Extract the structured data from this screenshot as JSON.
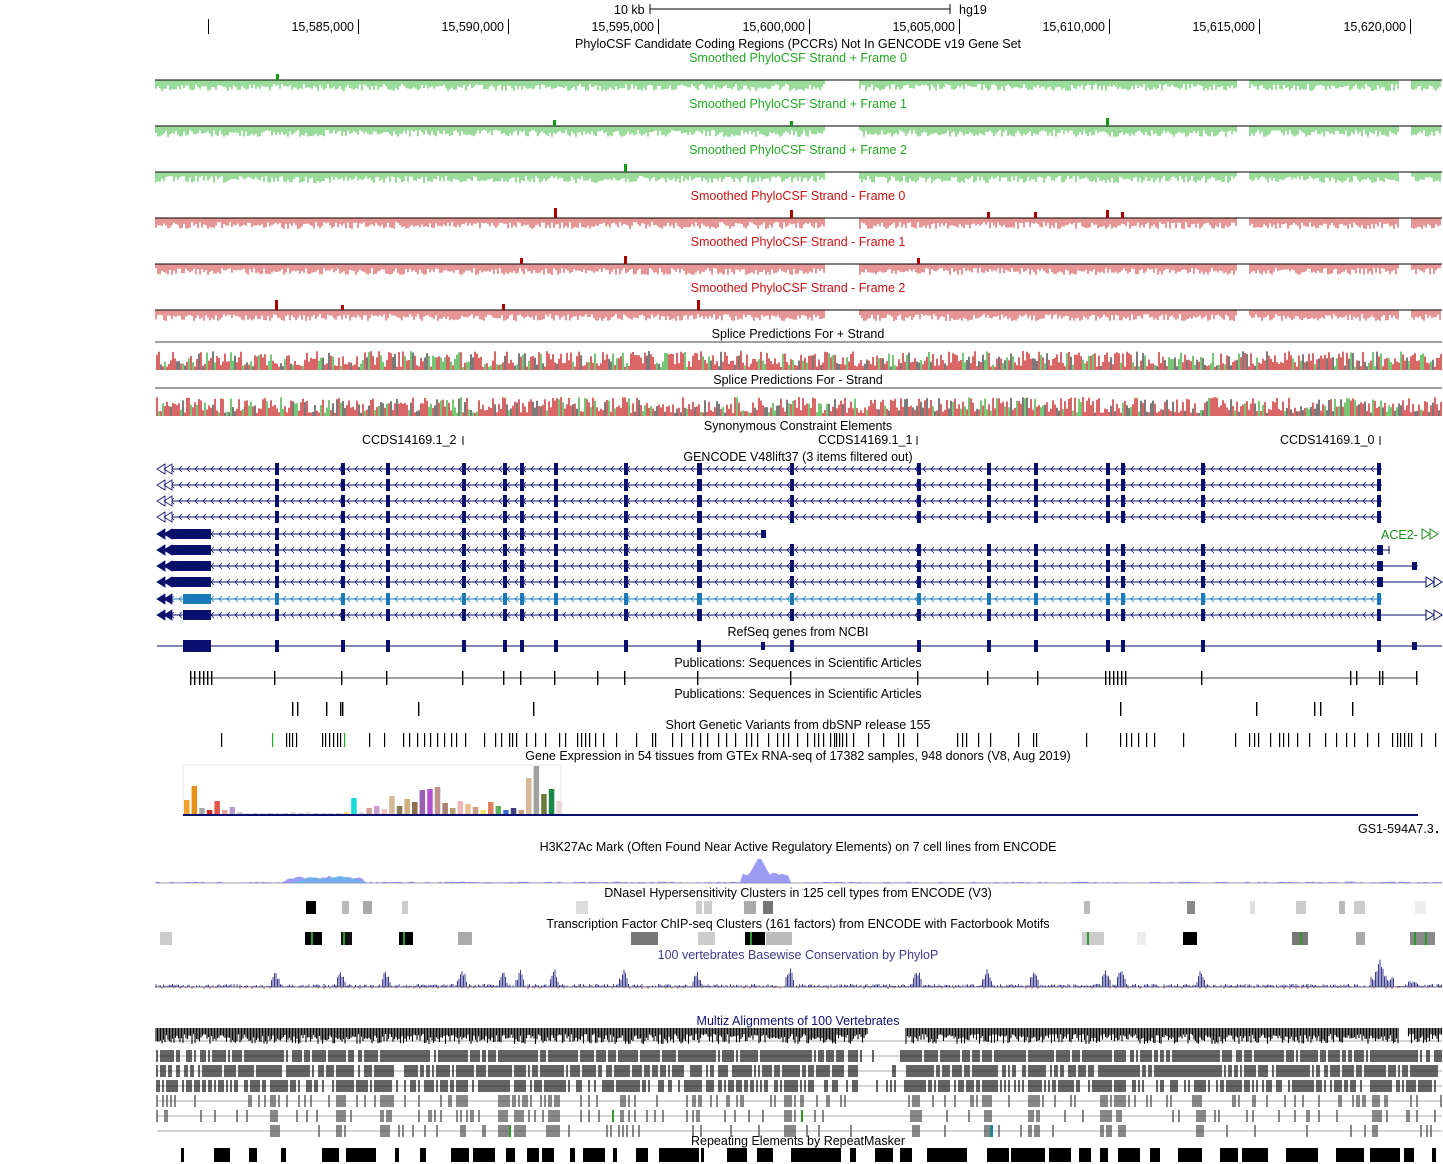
{
  "ruler": {
    "scale_label": "10 kb",
    "assembly": "hg19",
    "positions": [
      "15,585,000",
      "15,590,000",
      "15,595,000",
      "15,600,000",
      "15,605,000",
      "15,610,000",
      "15,615,000",
      "15,620,000"
    ]
  },
  "tracks": {
    "pccr": "PhyloCSF Candidate Coding Regions (PCCRs) Not In GENCODE v19 Gene Set",
    "phylo": [
      {
        "label": "Smoothed PhyloCSF  Strand +  Frame 0",
        "color": "#22aa22"
      },
      {
        "label": "Smoothed PhyloCSF  Strand +  Frame 1",
        "color": "#22aa22"
      },
      {
        "label": "Smoothed PhyloCSF  Strand +  Frame 2",
        "color": "#22aa22"
      },
      {
        "label": "Smoothed PhyloCSF  Strand -  Frame 0",
        "color": "#cc1111"
      },
      {
        "label": "Smoothed PhyloCSF  Strand -  Frame 1",
        "color": "#cc1111"
      },
      {
        "label": "Smoothed PhyloCSF  Strand -  Frame 2",
        "color": "#cc1111"
      }
    ],
    "splice_plus": "Splice Predictions For + Strand",
    "splice_minus": "Splice Predictions For - Strand",
    "syn_constraint": "Synonymous Constraint Elements",
    "ccds": [
      "CCDS14169.1_2",
      "CCDS14169.1_1",
      "CCDS14169.1_0"
    ],
    "gencode": "GENCODE V48lift37 (3 items filtered out)",
    "ace2_label": "ACE2-",
    "refseq": "RefSeq genes from NCBI",
    "pubs1": "Publications: Sequences in Scientific Articles",
    "pubs2": "Publications: Sequences in Scientific Articles",
    "dbsnp": "Short Genetic Variants from dbSNP release 155",
    "gtex": "Gene Expression in 54 tissues from GTEx RNA-seq of 17382 samples, 948 donors (V8, Aug 2019)",
    "gtex_gene": "GS1-594A7.3",
    "h3k27ac": "H3K27Ac Mark (Often Found Near Active Regulatory Elements) on 7 cell lines from ENCODE",
    "dnase": "DNaseI Hypersensitivity Clusters in 125 cell types from ENCODE (V3)",
    "tfbs": "Transcription Factor ChIP-seq Clusters (161 factors) from ENCODE with Factorbook Motifs",
    "phylop": "100 vertebrates Basewise Conservation by PhyloP",
    "multiz": "Multiz Alignments of 100 Vertebrates",
    "rmsk": "Repeating Elements by RepeatMasker"
  },
  "colors": {
    "navy": "#0a0f6e",
    "green_signal": "#80d080",
    "red_signal": "#e07b7b",
    "phylop": "#3b3b8f",
    "gencode_selected": "#1a7ab8"
  }
}
